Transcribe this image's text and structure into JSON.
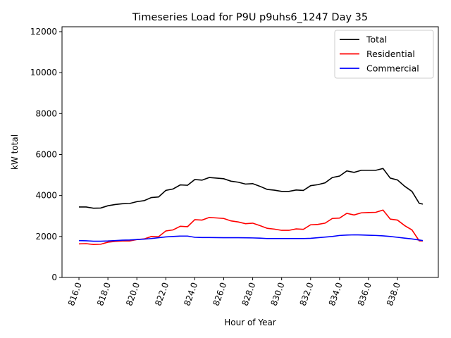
{
  "chart_data": {
    "type": "line",
    "title": "Timeseries Load for P9U p9uhs6_1247  Day 35",
    "xlabel": "Hour of Year",
    "ylabel": "kW total",
    "xlim": [
      814.83,
      840.82
    ],
    "ylim": [
      0,
      12240
    ],
    "xticks": [
      816,
      818,
      820,
      822,
      824,
      826,
      828,
      830,
      832,
      834,
      836,
      838
    ],
    "xtick_labels": [
      "816.0",
      "818.0",
      "820.0",
      "822.0",
      "824.0",
      "826.0",
      "828.0",
      "830.0",
      "832.0",
      "834.0",
      "836.0",
      "838.0"
    ],
    "yticks": [
      0,
      2000,
      4000,
      6000,
      8000,
      10000,
      12000
    ],
    "ytick_labels": [
      "0",
      "2000",
      "4000",
      "6000",
      "8000",
      "10000",
      "12000"
    ],
    "legend": "top-right",
    "grid": false,
    "x": [
      816,
      816.5,
      817,
      817.5,
      818,
      818.5,
      819,
      819.5,
      820,
      820.5,
      821,
      821.5,
      822,
      822.5,
      823,
      823.5,
      824,
      824.5,
      825,
      825.5,
      826,
      826.5,
      827,
      827.5,
      828,
      828.5,
      829,
      829.5,
      830,
      830.5,
      831,
      831.5,
      832,
      832.5,
      833,
      833.5,
      834,
      834.5,
      835,
      835.5,
      836,
      836.5,
      837,
      837.5,
      838,
      838.5,
      839,
      839.5,
      839.75
    ],
    "series": [
      {
        "name": "Total",
        "color": "#000000",
        "values": [
          3440,
          3440,
          3380,
          3390,
          3500,
          3560,
          3600,
          3610,
          3700,
          3750,
          3900,
          3930,
          4250,
          4320,
          4520,
          4500,
          4780,
          4750,
          4880,
          4850,
          4820,
          4700,
          4650,
          4560,
          4580,
          4450,
          4300,
          4260,
          4200,
          4200,
          4270,
          4250,
          4480,
          4530,
          4620,
          4880,
          4950,
          5200,
          5130,
          5230,
          5230,
          5230,
          5320,
          4850,
          4760,
          4450,
          4200,
          3620,
          3580
        ]
      },
      {
        "name": "Residential",
        "color": "#ff0000",
        "values": [
          1640,
          1650,
          1610,
          1620,
          1720,
          1760,
          1780,
          1780,
          1850,
          1880,
          2000,
          1990,
          2270,
          2320,
          2500,
          2480,
          2820,
          2800,
          2930,
          2905,
          2880,
          2760,
          2710,
          2625,
          2650,
          2530,
          2400,
          2360,
          2300,
          2300,
          2370,
          2350,
          2570,
          2590,
          2650,
          2880,
          2900,
          3130,
          3050,
          3155,
          3170,
          3180,
          3290,
          2850,
          2800,
          2530,
          2320,
          1790,
          1780
        ]
      },
      {
        "name": "Commercial",
        "color": "#0000ff",
        "values": [
          1800,
          1790,
          1770,
          1770,
          1780,
          1800,
          1820,
          1830,
          1850,
          1870,
          1900,
          1940,
          1980,
          2000,
          2020,
          2020,
          1960,
          1950,
          1950,
          1945,
          1940,
          1940,
          1940,
          1935,
          1930,
          1920,
          1900,
          1900,
          1900,
          1900,
          1900,
          1900,
          1910,
          1940,
          1970,
          2000,
          2050,
          2070,
          2080,
          2075,
          2060,
          2050,
          2030,
          2000,
          1960,
          1920,
          1880,
          1830,
          1800
        ]
      }
    ]
  }
}
